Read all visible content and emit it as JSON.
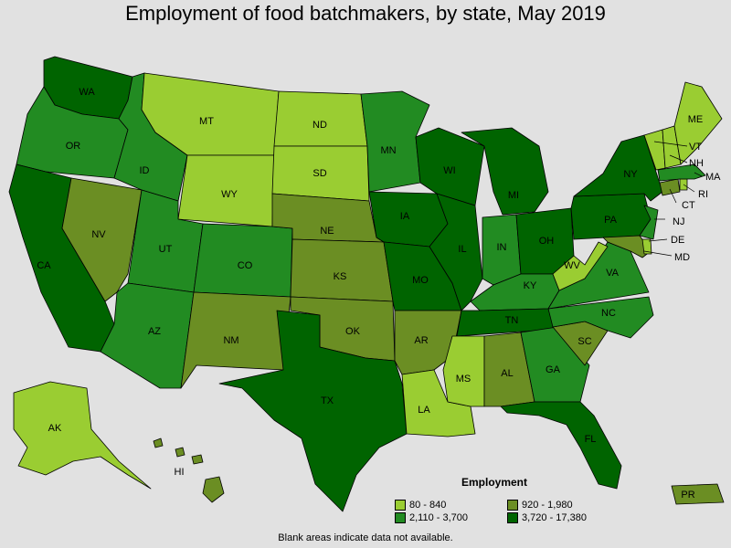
{
  "title": "Employment of food batchmakers, by state, May 2019",
  "legend": {
    "title": "Employment",
    "items": [
      {
        "label": "80 - 840",
        "color": "#9acd32"
      },
      {
        "label": "920 - 1,980",
        "color": "#6b8e23"
      },
      {
        "label": "2,110 - 3,700",
        "color": "#228b22"
      },
      {
        "label": "3,720 - 17,380",
        "color": "#006400"
      }
    ]
  },
  "note": "Blank areas indicate data not available.",
  "states": {
    "WA": "WA",
    "OR": "OR",
    "CA": "CA",
    "NV": "NV",
    "ID": "ID",
    "MT": "MT",
    "WY": "WY",
    "UT": "UT",
    "AZ": "AZ",
    "CO": "CO",
    "NM": "NM",
    "ND": "ND",
    "SD": "SD",
    "NE": "NE",
    "KS": "KS",
    "OK": "OK",
    "TX": "TX",
    "MN": "MN",
    "IA": "IA",
    "MO": "MO",
    "AR": "AR",
    "LA": "LA",
    "WI": "WI",
    "IL": "IL",
    "MS": "MS",
    "MI": "MI",
    "IN": "IN",
    "KY": "KY",
    "TN": "TN",
    "AL": "AL",
    "GA": "GA",
    "FL": "FL",
    "OH": "OH",
    "WV": "WV",
    "VA": "VA",
    "NC": "NC",
    "SC": "SC",
    "PA": "PA",
    "NY": "NY",
    "VT": "VT",
    "NH": "NH",
    "ME": "ME",
    "MA": "MA",
    "RI": "RI",
    "CT": "CT",
    "NJ": "NJ",
    "DE": "DE",
    "MD": "MD",
    "AK": "AK",
    "HI": "HI",
    "PR": "PR"
  }
}
